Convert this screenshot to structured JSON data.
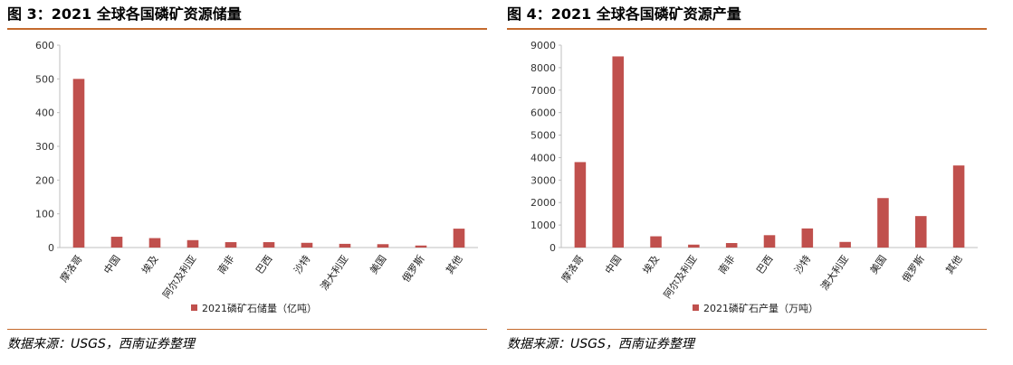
{
  "colors": {
    "bar": "#c0504d",
    "rule": "#c46a2d",
    "axis": "#bfbfbf"
  },
  "left": {
    "title": "图 3：2021 全球各国磷矿资源储量",
    "source": "数据来源：USGS，西南证券整理",
    "chart_data": {
      "type": "bar",
      "categories": [
        "摩洛哥",
        "中国",
        "埃及",
        "阿尔及利亚",
        "南非",
        "巴西",
        "沙特",
        "澳大利亚",
        "美国",
        "俄罗斯",
        "其他"
      ],
      "series": [
        {
          "name": "2021磷矿石储量（亿吨）",
          "values": [
            500,
            32,
            28,
            22,
            16,
            16,
            14,
            11,
            10,
            6,
            56
          ]
        }
      ],
      "ylim": [
        0,
        600
      ],
      "yticks": [
        0,
        100,
        200,
        300,
        400,
        500,
        600
      ],
      "legend": "bottom"
    }
  },
  "right": {
    "title": "图 4：2021 全球各国磷矿资源产量",
    "source": "数据来源：USGS，西南证券整理",
    "chart_data": {
      "type": "bar",
      "categories": [
        "摩洛哥",
        "中国",
        "埃及",
        "阿尔及利亚",
        "南非",
        "巴西",
        "沙特",
        "澳大利亚",
        "美国",
        "俄罗斯",
        "其他"
      ],
      "series": [
        {
          "name": "2021磷矿石产量（万吨）",
          "values": [
            3800,
            8500,
            500,
            130,
            200,
            550,
            850,
            250,
            2200,
            1400,
            3650
          ]
        }
      ],
      "ylim": [
        0,
        9000
      ],
      "yticks": [
        0,
        1000,
        2000,
        3000,
        4000,
        5000,
        6000,
        7000,
        8000,
        9000
      ],
      "legend": "bottom"
    }
  }
}
